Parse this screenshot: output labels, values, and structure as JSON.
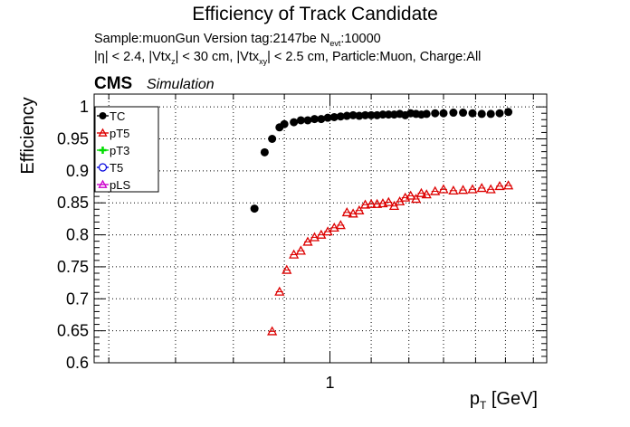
{
  "header": {
    "title": "Efficiency of Track Candidate",
    "line1_pre": "Sample:muonGun   Version tag:2147be  N",
    "line1_sub": "evt",
    "line1_post": ":10000",
    "line2_a": "|η| < 2.4, |Vtx",
    "line2_sub_a": "z",
    "line2_b": "| < 30 cm, |Vtx",
    "line2_sub_b": "xy",
    "line2_c": "| < 2.5 cm, Particle:Muon, Charge:All",
    "cms": "CMS",
    "simulation": "Simulation"
  },
  "colors": {
    "TC": "#000000",
    "pT5": "#dd0000",
    "pT3": "#00dd00",
    "T5": "#0000dd",
    "pLS": "#cc00cc"
  },
  "chart_data": {
    "type": "scatter",
    "xscale": "log",
    "xlabel_main": "p",
    "xlabel_sub": "T",
    "xlabel_unit": " [GeV]",
    "ylabel": "Efficiency",
    "xlim": [
      0.58,
      1.65
    ],
    "ylim": [
      0.6,
      1.02
    ],
    "grid": true,
    "legend_position": "top-left",
    "xticks": [
      {
        "value": 1,
        "label": "1"
      }
    ],
    "yticks": [
      0.6,
      0.65,
      0.7,
      0.75,
      0.8,
      0.85,
      0.9,
      0.95,
      1
    ],
    "ytick_labels": [
      "0.6",
      "0.65",
      "0.7",
      "0.75",
      "0.8",
      "0.85",
      "0.9",
      "0.95",
      "1"
    ],
    "legend": [
      {
        "key": "TC",
        "label": "TC",
        "marker": "circle"
      },
      {
        "key": "pT5",
        "label": "pT5",
        "marker": "triangle"
      },
      {
        "key": "pT3",
        "label": "pT3",
        "marker": "cross"
      },
      {
        "key": "T5",
        "label": "T5",
        "marker": "open-circle"
      },
      {
        "key": "pLS",
        "label": "pLS",
        "marker": "open-triangle"
      }
    ],
    "series": [
      {
        "name": "TC",
        "marker": "circle",
        "x": [
          0.84,
          0.86,
          0.875,
          0.89,
          0.9,
          0.92,
          0.935,
          0.95,
          0.965,
          0.98,
          0.995,
          1.01,
          1.025,
          1.04,
          1.055,
          1.07,
          1.085,
          1.1,
          1.115,
          1.13,
          1.145,
          1.16,
          1.175,
          1.19,
          1.205,
          1.22,
          1.235,
          1.25,
          1.275,
          1.3,
          1.33,
          1.36,
          1.39,
          1.42,
          1.45,
          1.48,
          1.51
        ],
        "y": [
          0.841,
          0.929,
          0.95,
          0.968,
          0.973,
          0.976,
          0.979,
          0.979,
          0.981,
          0.981,
          0.983,
          0.984,
          0.985,
          0.986,
          0.987,
          0.986,
          0.987,
          0.987,
          0.987,
          0.988,
          0.988,
          0.988,
          0.989,
          0.987,
          0.99,
          0.989,
          0.988,
          0.989,
          0.99,
          0.99,
          0.991,
          0.991,
          0.99,
          0.989,
          0.989,
          0.99,
          0.992
        ]
      },
      {
        "name": "pT5",
        "marker": "triangle",
        "x": [
          0.875,
          0.89,
          0.905,
          0.92,
          0.935,
          0.95,
          0.965,
          0.98,
          0.995,
          1.01,
          1.025,
          1.04,
          1.055,
          1.07,
          1.085,
          1.1,
          1.115,
          1.13,
          1.145,
          1.16,
          1.175,
          1.19,
          1.205,
          1.22,
          1.235,
          1.25,
          1.275,
          1.3,
          1.33,
          1.36,
          1.39,
          1.42,
          1.45,
          1.48,
          1.51
        ],
        "y": [
          0.649,
          0.711,
          0.745,
          0.769,
          0.775,
          0.789,
          0.796,
          0.8,
          0.805,
          0.811,
          0.815,
          0.835,
          0.833,
          0.838,
          0.847,
          0.848,
          0.848,
          0.849,
          0.851,
          0.845,
          0.852,
          0.858,
          0.861,
          0.856,
          0.865,
          0.863,
          0.868,
          0.871,
          0.869,
          0.87,
          0.871,
          0.873,
          0.871,
          0.876,
          0.877
        ]
      },
      {
        "name": "pT3",
        "marker": "cross",
        "x": [],
        "y": []
      },
      {
        "name": "T5",
        "marker": "open-circle",
        "x": [],
        "y": []
      },
      {
        "name": "pLS",
        "marker": "open-triangle",
        "x": [],
        "y": []
      }
    ]
  }
}
